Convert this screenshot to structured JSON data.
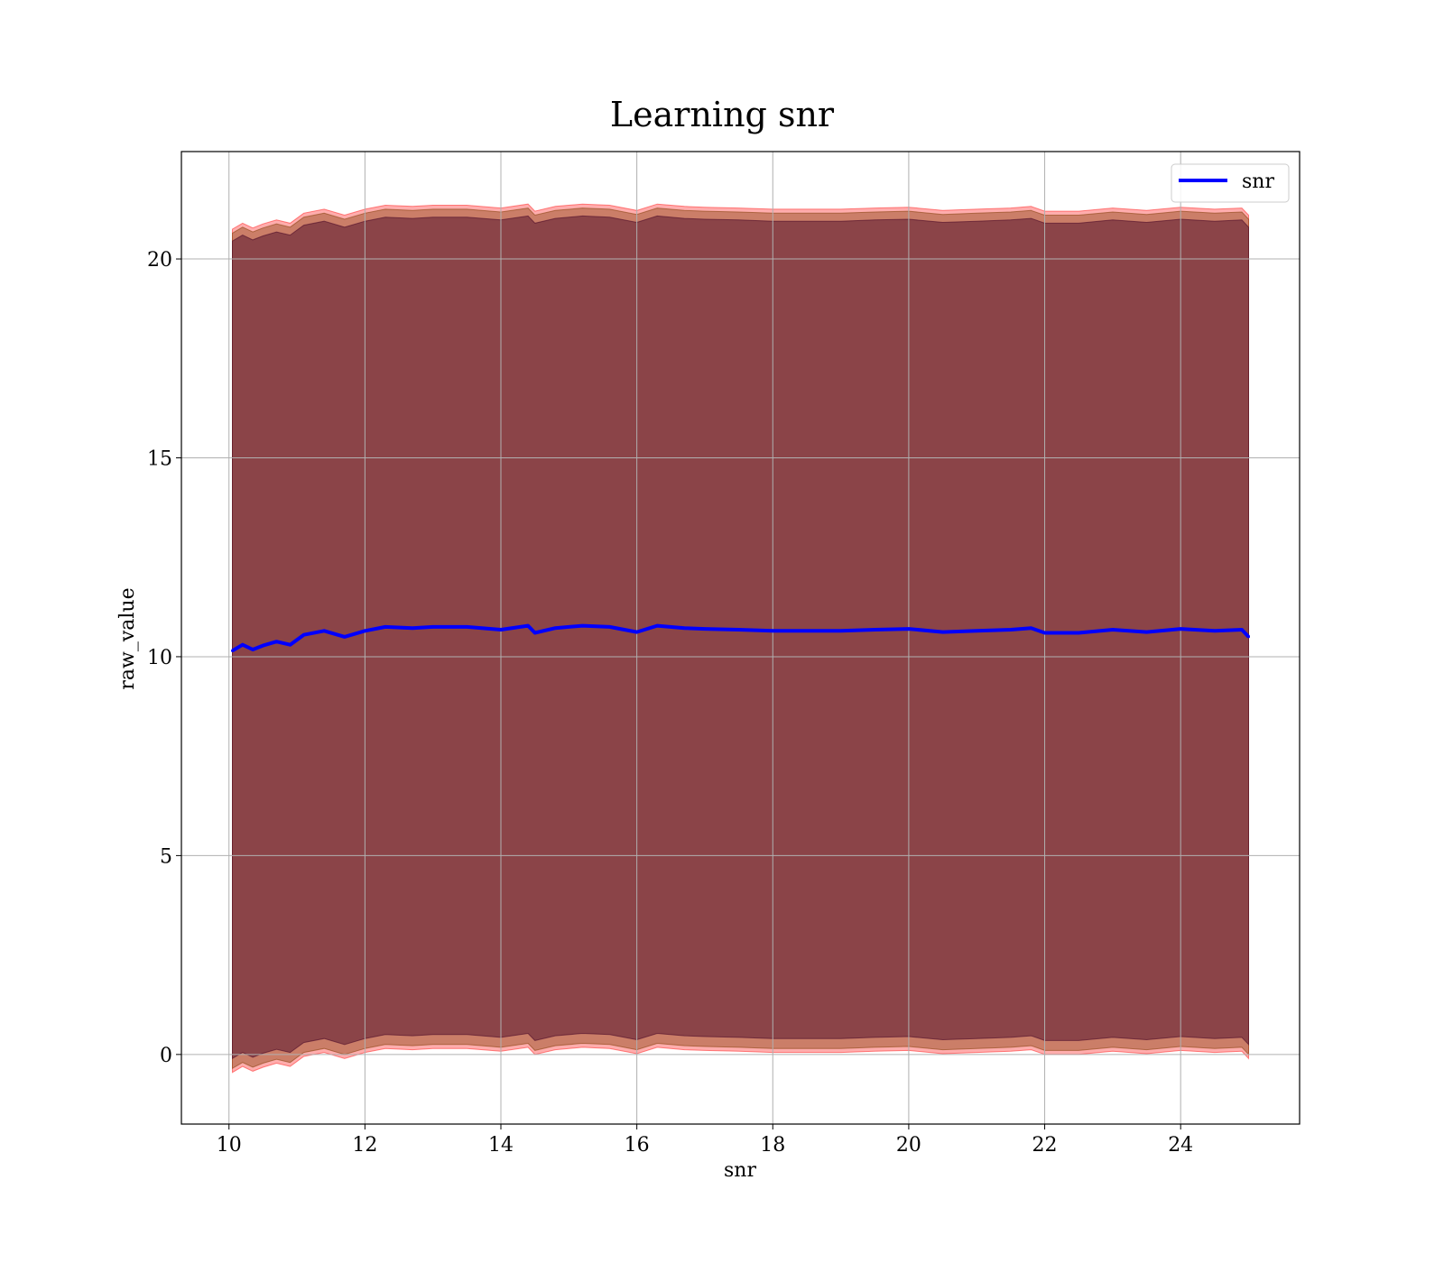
{
  "chart_data": {
    "type": "line",
    "title": "Learning snr",
    "xlabel": "snr",
    "ylabel": "raw_value",
    "xlim": [
      9.3,
      25.75
    ],
    "ylim": [
      -1.75,
      22.7
    ],
    "xticks": [
      10,
      12,
      14,
      16,
      18,
      20,
      22,
      24
    ],
    "yticks": [
      0,
      5,
      10,
      15,
      20
    ],
    "grid": true,
    "legend": {
      "position": "top-right",
      "entries": [
        "snr"
      ]
    },
    "series": [
      {
        "name": "snr",
        "color": "#0000ff",
        "x": [
          10.05,
          10.2,
          10.35,
          10.5,
          10.7,
          10.9,
          11.1,
          11.4,
          11.7,
          12.0,
          12.3,
          12.7,
          13.0,
          13.5,
          14.0,
          14.4,
          14.5,
          14.8,
          15.2,
          15.6,
          16.0,
          16.3,
          16.7,
          17.0,
          17.5,
          18.0,
          18.5,
          19.0,
          19.5,
          20.0,
          20.5,
          21.0,
          21.5,
          21.8,
          22.0,
          22.5,
          23.0,
          23.5,
          24.0,
          24.5,
          24.9,
          25.0
        ],
        "values": [
          10.15,
          10.3,
          10.18,
          10.28,
          10.38,
          10.3,
          10.55,
          10.65,
          10.5,
          10.65,
          10.75,
          10.72,
          10.75,
          10.75,
          10.68,
          10.78,
          10.6,
          10.72,
          10.78,
          10.75,
          10.62,
          10.78,
          10.72,
          10.7,
          10.68,
          10.65,
          10.65,
          10.65,
          10.68,
          10.7,
          10.62,
          10.65,
          10.68,
          10.72,
          10.6,
          10.6,
          10.68,
          10.62,
          10.7,
          10.65,
          10.68,
          10.5
        ]
      }
    ],
    "bands": [
      {
        "color": "#ff3333",
        "lower_offset": -10.6,
        "upper_offset": 10.6
      },
      {
        "color": "#8b4513",
        "lower_offset": -10.5,
        "upper_offset": 10.5
      },
      {
        "color": "#4b0a28",
        "lower_offset": -10.25,
        "upper_offset": 10.3
      }
    ]
  }
}
